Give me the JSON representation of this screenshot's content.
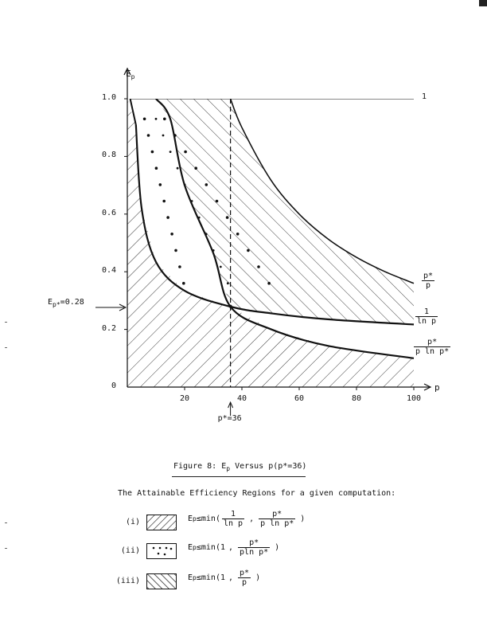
{
  "figure": {
    "y_axis_label": "E",
    "y_axis_sub": "p",
    "x_axis_label": "p",
    "y_ticks": [
      "0",
      "0.2",
      "0.4",
      "0.6",
      "0.8",
      "1.0"
    ],
    "x_ticks": [
      "20",
      "40",
      "60",
      "80",
      "100"
    ],
    "curve_labels": {
      "one": "1",
      "p_star_over_p": {
        "num": "p*",
        "den": "p"
      },
      "one_over_ln_p": {
        "num": "1",
        "den": "ln p"
      },
      "p_star_over_p_ln": {
        "num": "p*",
        "den": "p ln p*"
      }
    },
    "e_pstar_label": {
      "base": "E",
      "sub": "p*",
      "rest": "=0.28"
    },
    "p_star_marker": "p*=36"
  },
  "chart_data": {
    "type": "line",
    "title": "",
    "xlabel": "p",
    "ylabel": "Ep",
    "xlim": [
      0,
      100
    ],
    "ylim": [
      0,
      1.0
    ],
    "p_star": 36,
    "E_p_star": 0.28,
    "series": [
      {
        "name": "1",
        "x": [
          1,
          100
        ],
        "y": [
          1.0,
          1.0
        ]
      },
      {
        "name": "p*/p",
        "x": [
          36,
          40,
          50,
          60,
          70,
          80,
          90,
          100
        ],
        "y": [
          1.0,
          0.9,
          0.72,
          0.6,
          0.514,
          0.45,
          0.4,
          0.36
        ]
      },
      {
        "name": "1/ln p",
        "x": [
          3,
          5,
          10,
          20,
          36,
          50,
          70,
          100
        ],
        "y": [
          0.91,
          0.62,
          0.434,
          0.334,
          0.279,
          0.256,
          0.235,
          0.217
        ]
      },
      {
        "name": "p*/(p ln p*)",
        "x": [
          10,
          15,
          20,
          30,
          36,
          50,
          70,
          100
        ],
        "y": [
          1.0,
          0.93,
          0.7,
          0.465,
          0.279,
          0.201,
          0.143,
          0.1
        ]
      }
    ],
    "reference_lines": [
      {
        "x": 36,
        "style": "dashed"
      }
    ]
  },
  "caption": {
    "prefix": "Figure 8:  E",
    "sub": "p",
    "suffix": " Versus p(p*=36)"
  },
  "legend_heading": "The Attainable Efficiency Regions for a given computation:",
  "legend": [
    {
      "roman": "(i)",
      "E": "E",
      "sub": "p",
      "rel": "≤",
      "min_open": "min(",
      "f1_num": "1",
      "f1_den": "ln p",
      "sep": ",",
      "f2_num": "p*",
      "f2_den": "p ln p*",
      "close": ")"
    },
    {
      "roman": "(ii)",
      "E": "E",
      "sub": "p",
      "rel": "≤",
      "min_open": "min(1",
      "sep": ",",
      "f2_num": "p*",
      "f2_den": "pln p*",
      "close": ")"
    },
    {
      "roman": "(iii)",
      "E": "E",
      "sub": "p",
      "rel": "≤",
      "min_open": "min(1",
      "sep": ",",
      "f2_num": "p*",
      "f2_den": "p",
      "close": ")"
    }
  ]
}
